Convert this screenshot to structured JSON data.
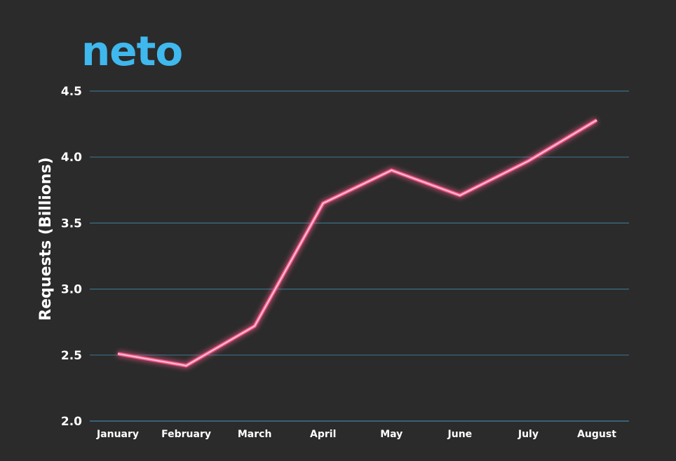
{
  "logo": {
    "text": "neto",
    "color": "#3fb8ee"
  },
  "chart_data": {
    "type": "line",
    "title": "",
    "xlabel": "",
    "ylabel": "Requests (Billions)",
    "categories": [
      "January",
      "February",
      "March",
      "April",
      "May",
      "June",
      "July",
      "August"
    ],
    "series": [
      {
        "values": [
          2.51,
          2.42,
          2.72,
          3.65,
          3.9,
          3.71,
          3.97,
          4.28
        ]
      }
    ],
    "ylim": [
      2.0,
      4.5
    ],
    "yticks": [
      "2.0",
      "2.5",
      "3.0",
      "3.5",
      "4.0",
      "4.5"
    ],
    "grid": true,
    "legend": "none",
    "colors": {
      "background": "#2b2b2b",
      "grid": "#3c6f86",
      "line": "#ff5d8f",
      "line_core": "#ffd0df",
      "text": "#ffffff"
    }
  }
}
